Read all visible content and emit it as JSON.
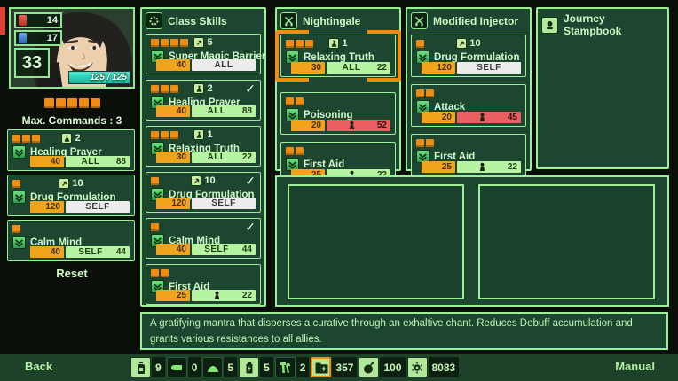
{
  "hud": {
    "stat_red": "14",
    "stat_blue": "17",
    "level": "33",
    "hp": "125 / 125",
    "command_pips": 5,
    "max_commands_label": "Max. Commands : 3",
    "reset_label": "Reset"
  },
  "loadout_cards": [
    {
      "pips": 3,
      "badge": "flask",
      "uses": "2",
      "name": "Healing Prayer",
      "cost": "40",
      "target": "ALL",
      "value": "88",
      "chip": "green"
    },
    {
      "pips": 1,
      "badge": "arrow",
      "uses": "10",
      "name": "Drug Formulation",
      "cost": "120",
      "target": "SELF",
      "value": "",
      "chip": "white"
    },
    {
      "pips": 1,
      "uses": "",
      "name": "Calm Mind",
      "cost": "40",
      "target": "SELF",
      "value": "44",
      "chip": "green"
    }
  ],
  "panels": [
    {
      "title": "Class Skills",
      "icon": "class-skills-icon",
      "cards": [
        {
          "pips": 4,
          "badge": "arrow",
          "uses": "5",
          "name": "Super Magic Barrier",
          "cost": "40",
          "target": "ALL",
          "value": "",
          "chip": "white"
        },
        {
          "pips": 3,
          "badge": "flask",
          "uses": "2",
          "name": "Healing Prayer",
          "cost": "40",
          "target": "ALL",
          "value": "88",
          "chip": "green",
          "checked": true
        },
        {
          "pips": 3,
          "badge": "flask",
          "uses": "1",
          "name": "Relaxing Truth",
          "cost": "30",
          "target": "ALL",
          "value": "22",
          "chip": "green"
        },
        {
          "pips": 1,
          "badge": "arrow",
          "uses": "10",
          "name": "Drug Formulation",
          "cost": "120",
          "target": "SELF",
          "value": "",
          "chip": "white",
          "checked": true
        },
        {
          "pips": 1,
          "uses": "",
          "name": "Calm Mind",
          "cost": "40",
          "target": "SELF",
          "value": "44",
          "chip": "green",
          "checked": true
        },
        {
          "pips": 2,
          "uses": "",
          "name": "First Aid",
          "cost": "25",
          "target": "single",
          "value": "22",
          "chip": "green"
        }
      ]
    },
    {
      "title": "Nightingale",
      "icon": "weapon-swords-icon",
      "cards": [
        {
          "pips": 3,
          "badge": "flask",
          "uses": "1",
          "name": "Relaxing Truth",
          "cost": "30",
          "target": "ALL",
          "value": "22",
          "chip": "green",
          "selected": true
        },
        {
          "pips": 2,
          "uses": "",
          "name": "Poisoning",
          "cost": "20",
          "target": "single",
          "value": "52",
          "chip": "red"
        },
        {
          "pips": 2,
          "uses": "",
          "name": "First Aid",
          "cost": "25",
          "target": "single",
          "value": "22",
          "chip": "green"
        }
      ]
    },
    {
      "title": "Modified Injector",
      "icon": "weapon-swords-icon",
      "cards": [
        {
          "pips": 1,
          "badge": "arrow",
          "uses": "10",
          "name": "Drug Formulation",
          "cost": "120",
          "target": "SELF",
          "value": "",
          "chip": "white"
        },
        {
          "pips": 2,
          "uses": "",
          "name": "Attack",
          "cost": "20",
          "target": "single",
          "value": "45",
          "chip": "red"
        },
        {
          "pips": 2,
          "uses": "",
          "name": "First Aid",
          "cost": "25",
          "target": "single",
          "value": "22",
          "chip": "green"
        }
      ]
    },
    {
      "title": "Journey Stampbook",
      "icon": "stampbook-icon",
      "cards": []
    }
  ],
  "description": "A gratifying mantra that disperses a curative through an exhaltive chant. Reduces Debuff accumulation and grants various resistances to all allies.",
  "footer": {
    "back_label": "Back",
    "manual_label": "Manual",
    "items": [
      {
        "icon": "medicine-bottle",
        "count": "9",
        "style": "light"
      },
      {
        "icon": "bullet",
        "count": "0",
        "style": "dark"
      },
      {
        "icon": "powder",
        "count": "5",
        "style": "dark"
      },
      {
        "icon": "battery",
        "count": "5",
        "style": "light"
      },
      {
        "icon": "tools",
        "count": "2",
        "style": "dark"
      },
      {
        "icon": "folder-plus",
        "count": "357",
        "style": "light",
        "highlight": true
      },
      {
        "icon": "bomb",
        "count": "100",
        "style": "light"
      },
      {
        "icon": "gear",
        "count": "8083",
        "style": "light"
      }
    ]
  }
}
